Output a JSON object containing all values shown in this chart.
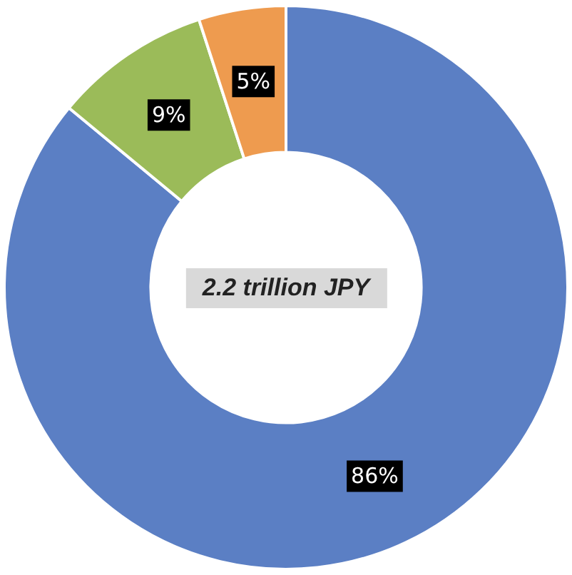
{
  "chart_data": {
    "type": "donut",
    "categories": [
      null,
      null,
      null
    ],
    "values": [
      86,
      9,
      5
    ],
    "colors": [
      "#5b7fc4",
      "#9bbb59",
      "#ee9b4f"
    ],
    "value_labels": [
      "86%",
      "9%",
      "5%"
    ],
    "annotations": [
      "2.2 trillion JPY"
    ],
    "legend": false
  }
}
